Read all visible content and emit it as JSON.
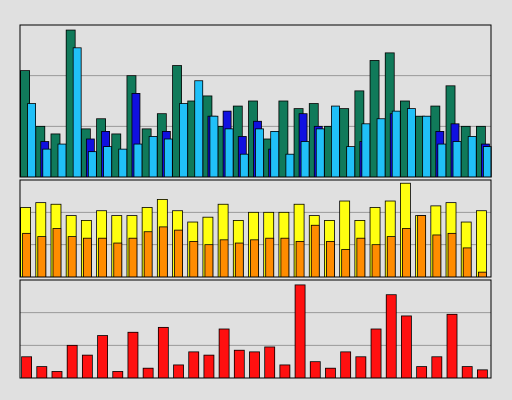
{
  "chart_data": [
    {
      "type": "bar",
      "ylim": [
        0,
        3
      ],
      "yticks": [
        0,
        1,
        2,
        3
      ],
      "grid": true,
      "series": [
        {
          "color": "#107a5a",
          "values": [
            2.1,
            1.0,
            0.85,
            2.9,
            0.95,
            1.15,
            0.85,
            2.0,
            0.95,
            1.25,
            2.2,
            1.5,
            1.6,
            1.0,
            1.4,
            1.5,
            0.75,
            1.5,
            1.35,
            1.45,
            1.0,
            1.35,
            1.7,
            2.3,
            2.45,
            1.5,
            1.2,
            1.4,
            1.8,
            1.0,
            1.0
          ]
        },
        {
          "color": "#1010e0",
          "values": [
            0,
            0.7,
            0,
            0,
            0.75,
            0.9,
            0,
            1.65,
            0,
            0.9,
            0,
            0,
            1.2,
            1.3,
            0.8,
            1.1,
            0.55,
            0,
            1.25,
            1.0,
            0,
            0,
            0.7,
            0,
            1.25,
            0,
            0,
            0.9,
            1.05,
            0,
            0.65
          ]
        },
        {
          "color": "#20c0f8",
          "values": [
            1.45,
            0.55,
            0.65,
            2.55,
            0.5,
            0.6,
            0.55,
            0.65,
            0.8,
            0.75,
            1.45,
            1.9,
            1.2,
            0.95,
            0.45,
            0.95,
            0.9,
            0.45,
            0.7,
            0.95,
            1.4,
            0.6,
            1.05,
            1.15,
            1.3,
            1.35,
            1.2,
            0.65,
            0.7,
            0.8,
            0.6
          ]
        }
      ]
    },
    {
      "type": "bar",
      "ylim": [
        0,
        3
      ],
      "yticks": [
        0,
        1,
        2,
        3
      ],
      "grid": true,
      "series": [
        {
          "color": "#ffff10",
          "values": [
            2.15,
            2.3,
            2.25,
            1.9,
            1.75,
            2.05,
            1.9,
            1.9,
            2.15,
            2.4,
            2.05,
            1.7,
            1.85,
            2.25,
            1.75,
            2.0,
            2.0,
            2.0,
            2.25,
            1.9,
            1.75,
            2.35,
            1.75,
            2.15,
            2.35,
            2.9,
            1.9,
            2.2,
            2.3,
            1.7,
            2.05
          ]
        },
        {
          "color": "#ff8c00",
          "values": [
            1.35,
            1.25,
            1.5,
            1.25,
            1.2,
            1.2,
            1.05,
            1.2,
            1.4,
            1.55,
            1.45,
            1.1,
            1.0,
            1.15,
            1.05,
            1.15,
            1.2,
            1.2,
            1.1,
            1.6,
            1.1,
            0.85,
            1.2,
            1.0,
            1.25,
            1.5,
            1.9,
            1.3,
            1.35,
            0.9,
            0.15
          ]
        }
      ]
    },
    {
      "type": "bar",
      "ylim": [
        0,
        3
      ],
      "yticks": [
        0,
        1,
        2,
        3
      ],
      "grid": true,
      "series": [
        {
          "color": "#ff1010",
          "values": [
            0.65,
            0.35,
            0.2,
            1.0,
            0.7,
            1.3,
            0.2,
            1.4,
            0.3,
            1.55,
            0.4,
            0.8,
            0.7,
            1.5,
            0.85,
            0.8,
            0.95,
            0.4,
            2.85,
            0.5,
            0.3,
            0.8,
            0.65,
            1.5,
            2.55,
            1.9,
            0.35,
            0.65,
            1.95,
            0.35,
            0.25
          ]
        }
      ]
    }
  ]
}
